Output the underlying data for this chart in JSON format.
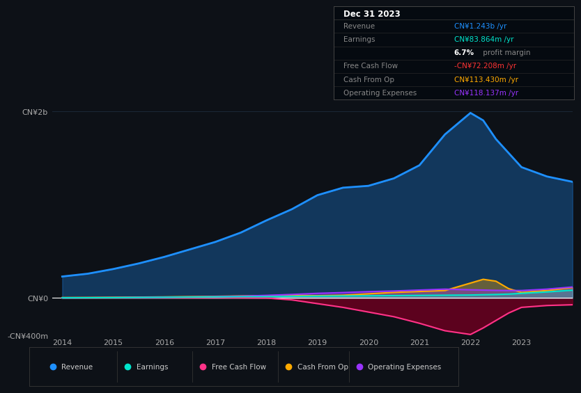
{
  "bg_color": "#0d1117",
  "plot_bg_color": "#0d1117",
  "grid_color": "#1e2d3d",
  "zero_line_color": "#ffffff",
  "years": [
    2014,
    2014.5,
    2015,
    2015.5,
    2016,
    2016.5,
    2017,
    2017.5,
    2018,
    2018.5,
    2019,
    2019.5,
    2020,
    2020.5,
    2021,
    2021.5,
    2022,
    2022.25,
    2022.5,
    2022.75,
    2023,
    2023.5,
    2024
  ],
  "revenue": [
    230,
    260,
    310,
    370,
    440,
    520,
    600,
    700,
    830,
    950,
    1100,
    1180,
    1200,
    1280,
    1420,
    1750,
    1980,
    1900,
    1700,
    1550,
    1400,
    1300,
    1243
  ],
  "earnings": [
    2,
    3,
    4,
    6,
    8,
    10,
    12,
    14,
    15,
    18,
    20,
    22,
    24,
    26,
    28,
    30,
    32,
    35,
    38,
    42,
    50,
    65,
    84
  ],
  "free_cash_flow": [
    2,
    2,
    3,
    3,
    4,
    4,
    5,
    3,
    0,
    -20,
    -60,
    -100,
    -150,
    -200,
    -270,
    -350,
    -390,
    -320,
    -240,
    -160,
    -100,
    -80,
    -72
  ],
  "cash_from_op": [
    5,
    6,
    8,
    10,
    12,
    15,
    18,
    22,
    25,
    28,
    25,
    30,
    45,
    60,
    70,
    80,
    160,
    200,
    180,
    100,
    60,
    80,
    113
  ],
  "op_expenses": [
    3,
    4,
    5,
    7,
    9,
    12,
    15,
    20,
    28,
    38,
    50,
    58,
    68,
    75,
    85,
    95,
    88,
    85,
    82,
    80,
    80,
    95,
    118
  ],
  "ylim": [
    -400,
    2100
  ],
  "yticks": [
    -400,
    0,
    2000
  ],
  "ytick_labels": [
    "-CN¥400m",
    "CN¥0",
    "CN¥2b"
  ],
  "xtick_years": [
    2014,
    2015,
    2016,
    2017,
    2018,
    2019,
    2020,
    2021,
    2022,
    2023
  ],
  "colors": {
    "revenue": "#1e90ff",
    "earnings": "#00e5cc",
    "free_cash_flow": "#ff3388",
    "cash_from_op": "#ffaa00",
    "op_expenses": "#9933ff"
  },
  "info_box": {
    "title": "Dec 31 2023",
    "rows": [
      {
        "label": "Revenue",
        "value": "CN¥1.243b /yr",
        "color": "#1e90ff"
      },
      {
        "label": "Earnings",
        "value": "CN¥83.864m /yr",
        "color": "#00e5cc"
      },
      {
        "label": "",
        "value": "6.7% profit margin",
        "color": "#aaaaaa",
        "bold_prefix": "6.7%"
      },
      {
        "label": "Free Cash Flow",
        "value": "-CN¥72.208m /yr",
        "color": "#ff3333"
      },
      {
        "label": "Cash From Op",
        "value": "CN¥113.430m /yr",
        "color": "#ffaa00"
      },
      {
        "label": "Operating Expenses",
        "value": "CN¥118.137m /yr",
        "color": "#9933ff"
      }
    ]
  },
  "legend": [
    {
      "label": "Revenue",
      "color": "#1e90ff"
    },
    {
      "label": "Earnings",
      "color": "#00e5cc"
    },
    {
      "label": "Free Cash Flow",
      "color": "#ff3388"
    },
    {
      "label": "Cash From Op",
      "color": "#ffaa00"
    },
    {
      "label": "Operating Expenses",
      "color": "#9933ff"
    }
  ]
}
